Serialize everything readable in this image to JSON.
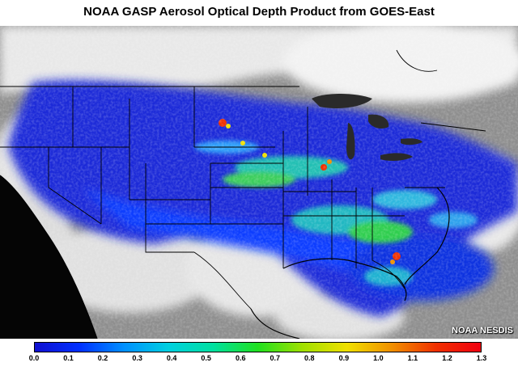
{
  "title": "NOAA GASP Aerosol Optical Depth Product from GOES-East",
  "credit": "NOAA NESDIS",
  "colorbar": {
    "ticks": [
      "0.0",
      "0.1",
      "0.2",
      "0.3",
      "0.4",
      "0.5",
      "0.6",
      "0.7",
      "0.8",
      "0.9",
      "1.0",
      "1.1",
      "1.2",
      "1.3"
    ],
    "min": 0.0,
    "max": 1.3,
    "colors": [
      "#1010d0",
      "#0030ff",
      "#0090ff",
      "#00d0e0",
      "#00e0a0",
      "#20e020",
      "#a0e000",
      "#f0e000",
      "#f09000",
      "#f03000",
      "#f00010"
    ]
  },
  "map_colors": {
    "ocean_night": "#050505",
    "cloud": "#ececec",
    "land_gray": "#8e8e8e",
    "lake": "#2a2a2a",
    "boundary": "#000000"
  }
}
